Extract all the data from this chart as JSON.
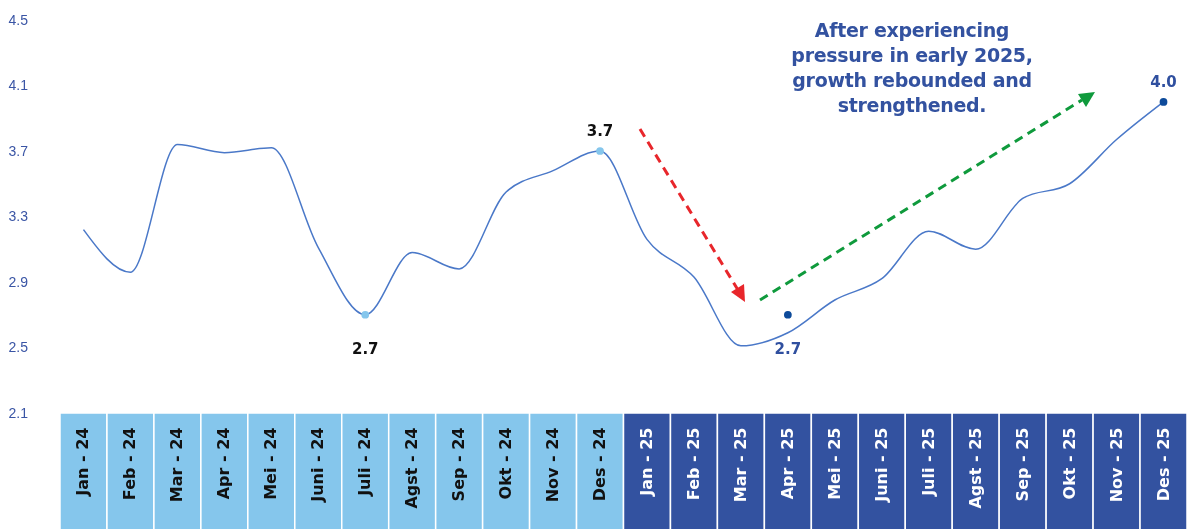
{
  "chart_data": {
    "type": "line",
    "categories": [
      "Jan - 24",
      "Feb - 24",
      "Mar - 24",
      "Apr - 24",
      "Mei - 24",
      "Juni - 24",
      "Juli - 24",
      "Agst - 24",
      "Sep - 24",
      "Okt - 24",
      "Nov - 24",
      "Des - 24",
      "Jan - 25",
      "Feb - 25",
      "Mar - 25",
      "Apr - 25",
      "Mei - 25",
      "Juni - 25",
      "Juli - 25",
      "Agst - 25",
      "Sep - 25",
      "Okt - 25",
      "Nov - 25",
      "Des - 25"
    ],
    "series": [
      {
        "color": "#4a78c8",
        "values": [
          3.22,
          2.96,
          3.74,
          3.69,
          3.72,
          3.11,
          2.7,
          3.08,
          2.98,
          3.45,
          3.58,
          3.7,
          3.16,
          2.93,
          2.51,
          2.59,
          2.79,
          2.92,
          3.21,
          3.1,
          3.41,
          3.5,
          3.77,
          4.0
        ]
      },
      {
        "type": "scatter",
        "color": "#85c6ec",
        "values": [
          null,
          null,
          null,
          null,
          null,
          null,
          2.7,
          null,
          null,
          null,
          null,
          3.7,
          null,
          null,
          null,
          null,
          null,
          null,
          null,
          null,
          null,
          null,
          null,
          null
        ],
        "value_labels": [
          null,
          null,
          null,
          null,
          null,
          null,
          "2.7",
          null,
          null,
          null,
          null,
          "3.7",
          null,
          null,
          null,
          null,
          null,
          null,
          null,
          null,
          null,
          null,
          null,
          null
        ]
      },
      {
        "type": "scatter",
        "color": "#0d4a9a",
        "values": [
          null,
          null,
          null,
          null,
          null,
          null,
          null,
          null,
          null,
          null,
          null,
          null,
          null,
          null,
          null,
          2.7,
          null,
          null,
          null,
          null,
          null,
          null,
          null,
          4.0
        ],
        "value_labels": [
          null,
          null,
          null,
          null,
          null,
          null,
          null,
          null,
          null,
          null,
          null,
          null,
          null,
          null,
          null,
          "2.7",
          null,
          null,
          null,
          null,
          null,
          null,
          null,
          "4.0"
        ]
      }
    ],
    "ylim": [
      2.1,
      4.5
    ],
    "yticks": [
      2.1,
      2.5,
      2.9,
      3.3,
      3.7,
      4.1,
      4.5
    ],
    "grid": false,
    "annotations": [
      "After experiencing pressure in early 2025, growth rebounded and strengthened."
    ]
  }
}
